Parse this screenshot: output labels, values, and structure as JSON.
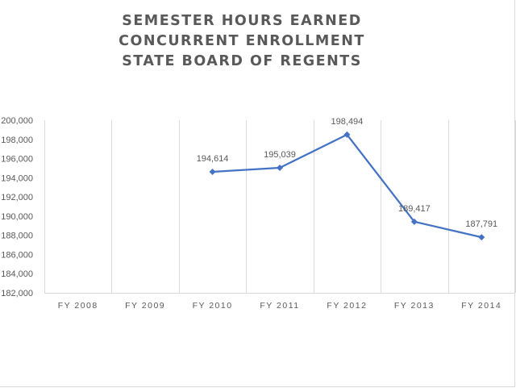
{
  "chart_data": {
    "type": "line",
    "title_lines": [
      "SEMESTER HOURS EARNED",
      "CONCURRENT ENROLLMENT",
      "STATE BOARD OF REGENTS"
    ],
    "categories": [
      "FY 2008",
      "FY 2009",
      "FY 2010",
      "FY 2011",
      "FY 2012",
      "FY 2013",
      "FY 2014"
    ],
    "series": [
      {
        "values": [
          null,
          null,
          194614,
          195039,
          198494,
          189417,
          187791
        ],
        "color": "#4472c4"
      }
    ],
    "data_labels": [
      "",
      "",
      "194,614",
      "195,039",
      "198,494",
      "189,417",
      "187,791"
    ],
    "y_ticks": [
      "182,000",
      "184,000",
      "186,000",
      "188,000",
      "190,000",
      "192,000",
      "194,000",
      "196,000",
      "198,000",
      "200,000"
    ],
    "ylim": [
      182000,
      200000
    ],
    "grid": "vertical",
    "legend": "none"
  }
}
